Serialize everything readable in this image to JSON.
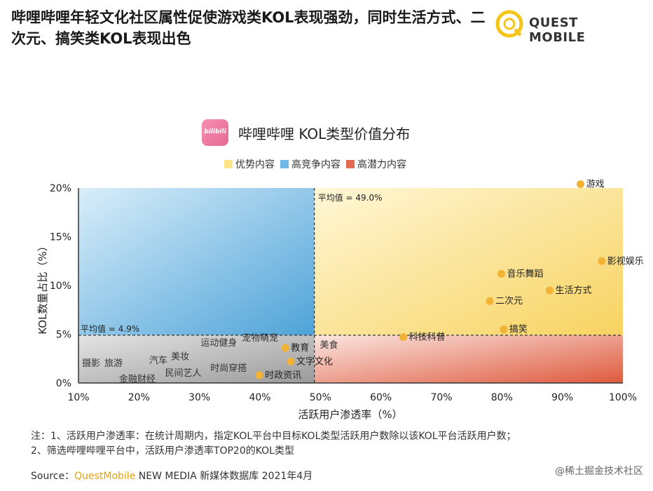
{
  "headline": "哔哩哔哩年轻文化社区属性促使游戏类KOL表现强劲，同时生活方式、二次元、搞笑类KOL表现出色",
  "brand": {
    "name": "QUEST MOBILE",
    "accent": "#f5c518"
  },
  "chart_header": {
    "logo_text": "bilibili",
    "title": "哔哩哔哩 KOL类型价值分布"
  },
  "legend": [
    {
      "label": "优势内容",
      "color": "#fbe68a"
    },
    {
      "label": "高竞争内容",
      "color": "#6fb8e6"
    },
    {
      "label": "高潜力内容",
      "color": "#e46a50"
    }
  ],
  "chart_data": {
    "type": "scatter",
    "xlabel": "活跃用户渗透率（%）",
    "ylabel": "KOL数量占比（%）",
    "xlim": [
      10,
      100
    ],
    "ylim": [
      0,
      20
    ],
    "xticks": [
      "10%",
      "20%",
      "30%",
      "40%",
      "50%",
      "60%",
      "70%",
      "80%",
      "90%",
      "100%"
    ],
    "yticks": [
      "0%",
      "5%",
      "10%",
      "15%",
      "20%"
    ],
    "avg_x": {
      "value": 49.0,
      "label": "平均值 = 49.0%"
    },
    "avg_y": {
      "value": 4.9,
      "label": "平均值 = 4.9%"
    },
    "highlighted": [
      {
        "name": "游戏",
        "x": 93.0,
        "y": 20.4
      },
      {
        "name": "影视娱乐",
        "x": 96.5,
        "y": 12.5
      },
      {
        "name": "音乐舞蹈",
        "x": 79.9,
        "y": 11.2
      },
      {
        "name": "生活方式",
        "x": 87.9,
        "y": 9.5
      },
      {
        "name": "二次元",
        "x": 78.0,
        "y": 8.4
      },
      {
        "name": "搞笑",
        "x": 80.3,
        "y": 5.5
      },
      {
        "name": "科技科普",
        "x": 63.7,
        "y": 4.7
      },
      {
        "name": "教育",
        "x": 44.2,
        "y": 3.6
      },
      {
        "name": "文字文化",
        "x": 45.1,
        "y": 2.2
      },
      {
        "name": "时政资讯",
        "x": 39.9,
        "y": 0.8
      }
    ],
    "other_labels": [
      {
        "name": "美食",
        "x": 49.9,
        "y": 3.9
      },
      {
        "name": "宠物萌宠",
        "x": 37.0,
        "y": 4.6
      },
      {
        "name": "运动健身",
        "x": 30.2,
        "y": 4.1
      },
      {
        "name": "美妆",
        "x": 25.3,
        "y": 2.7
      },
      {
        "name": "汽车",
        "x": 21.7,
        "y": 2.3
      },
      {
        "name": "时尚穿搭",
        "x": 31.8,
        "y": 1.5
      },
      {
        "name": "民间艺人",
        "x": 24.3,
        "y": 1.0
      },
      {
        "name": "摄影",
        "x": 10.6,
        "y": 2.0
      },
      {
        "name": "旅游",
        "x": 14.3,
        "y": 2.0
      },
      {
        "name": "金融财经",
        "x": 16.7,
        "y": 0.4
      }
    ]
  },
  "notes": [
    "注：1、活跃用户渗透率：在统计周期内，指定KOL平台中目标KOL类型活跃用户数除以该KOL平台活跃用户数；",
    "2、筛选哔哩哔哩平台中，活跃用户渗透率TOP20的KOL类型"
  ],
  "source": {
    "prefix": "Source：",
    "brand": "QuestMobile",
    "text": " NEW MEDIA 新媒体数据库 2021年4月"
  },
  "credit": "@稀土掘金技术社区"
}
